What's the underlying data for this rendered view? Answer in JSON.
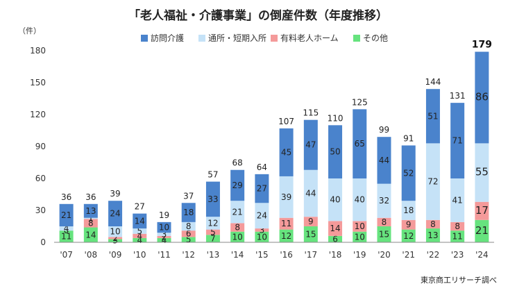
{
  "chart_data": {
    "type": "bar",
    "stacked": true,
    "title": "「老人福祉・介護事業」の倒産件数（年度推移）",
    "yunit": "（件）",
    "source": "東京商工リサーチ調べ",
    "ylim": [
      0,
      180
    ],
    "yticks": [
      0,
      30,
      60,
      90,
      120,
      150,
      180
    ],
    "grid": false,
    "legend_position": "top",
    "categories": [
      "'07",
      "'08",
      "'09",
      "'10",
      "'11",
      "'12",
      "'13",
      "'14",
      "'15",
      "'16",
      "'17",
      "'18",
      "'19",
      "'20",
      "'21",
      "'22",
      "'23",
      "'24"
    ],
    "totals": [
      36,
      36,
      39,
      27,
      19,
      37,
      57,
      68,
      64,
      107,
      115,
      110,
      125,
      99,
      91,
      144,
      131,
      179
    ],
    "highlight_last": true,
    "series": [
      {
        "name": "その他",
        "color": "#66e37e",
        "values": [
          11,
          14,
          3,
          4,
          4,
          5,
          7,
          10,
          10,
          12,
          15,
          6,
          10,
          15,
          12,
          13,
          11,
          21
        ]
      },
      {
        "name": "有料老人ホーム",
        "color": "#f49a9a",
        "values": [
          0,
          8,
          2,
          4,
          2,
          6,
          5,
          8,
          3,
          11,
          9,
          14,
          10,
          8,
          9,
          8,
          8,
          17
        ]
      },
      {
        "name": "通所・短期入所",
        "color": "#c5e2f7",
        "values": [
          4,
          1,
          10,
          5,
          3,
          8,
          12,
          21,
          24,
          39,
          44,
          40,
          40,
          32,
          18,
          72,
          41,
          55
        ]
      },
      {
        "name": "訪問介護",
        "color": "#4a83cc",
        "values": [
          21,
          13,
          24,
          14,
          10,
          18,
          33,
          29,
          27,
          45,
          47,
          50,
          65,
          44,
          52,
          51,
          71,
          86
        ]
      }
    ],
    "legend_order": [
      "訪問介護",
      "通所・短期入所",
      "有料老人ホーム",
      "その他"
    ]
  }
}
